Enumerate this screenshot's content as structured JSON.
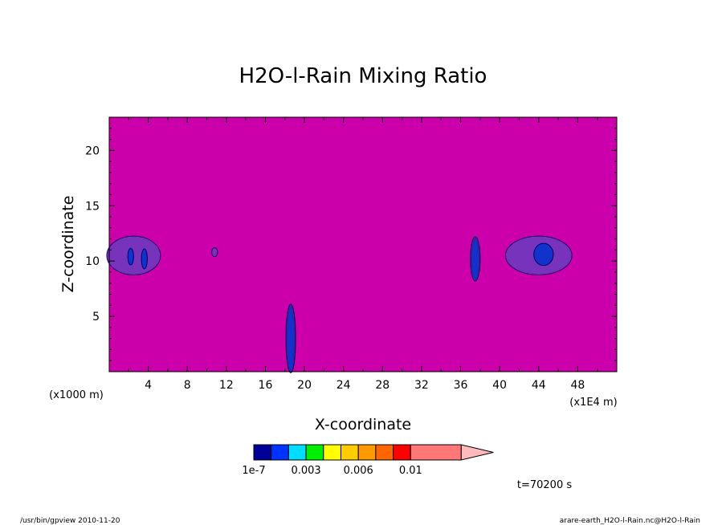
{
  "chart_data": {
    "type": "heatmap",
    "title": "H2O-l-Rain Mixing Ratio",
    "xlabel": "X-coordinate",
    "ylabel": "Z-coordinate",
    "x_unit_left": "(x1000 m)",
    "x_unit_right": "(x1E4 m)",
    "xlim": [
      0,
      52
    ],
    "ylim": [
      0,
      23
    ],
    "x_ticks": [
      "4",
      "8",
      "12",
      "16",
      "20",
      "24",
      "28",
      "32",
      "36",
      "40",
      "44",
      "48"
    ],
    "y_ticks": [
      "5",
      "10",
      "15",
      "20"
    ],
    "background_color": "#cc00aa",
    "features": [
      {
        "x": 2.5,
        "z": 10.5,
        "level": "1e-7",
        "shape": "blob",
        "w": 5.5,
        "h": 3.5
      },
      {
        "x": 2.2,
        "z": 10.4,
        "level": "1e-7",
        "shape": "streak",
        "w": 0.6,
        "h": 1.5
      },
      {
        "x": 3.6,
        "z": 10.2,
        "level": "1e-7",
        "shape": "streak",
        "w": 0.6,
        "h": 1.8
      },
      {
        "x": 10.8,
        "z": 10.8,
        "level": "1e-7",
        "shape": "blob",
        "w": 0.6,
        "h": 0.8
      },
      {
        "x": 18.6,
        "z": 3.0,
        "level": "1e-7",
        "shape": "column",
        "w": 1.0,
        "h": 6.2
      },
      {
        "x": 37.5,
        "z": 10.2,
        "level": "1e-7",
        "shape": "column",
        "w": 1.0,
        "h": 4.0
      },
      {
        "x": 44.0,
        "z": 10.5,
        "level": "1e-7",
        "shape": "blob",
        "w": 6.8,
        "h": 3.5
      },
      {
        "x": 44.5,
        "z": 10.6,
        "level": "1e-7",
        "shape": "streak",
        "w": 2.0,
        "h": 2.0
      }
    ],
    "colorbar": {
      "colors": [
        "#000099",
        "#0033ff",
        "#00ddff",
        "#00ee00",
        "#ffff00",
        "#ffcc00",
        "#ff9900",
        "#ff6600",
        "#ff0000",
        "#ff7777",
        "#ffbbbb"
      ],
      "labels": [
        "1e-7",
        "0.003",
        "0.006",
        "0.01"
      ]
    },
    "time_label": "t=70200 s"
  },
  "footer": {
    "left": "/usr/bin/gpview   2010-11-20",
    "right": "arare-earth_H2O-l-Rain.nc@H2O-l-Rain"
  }
}
